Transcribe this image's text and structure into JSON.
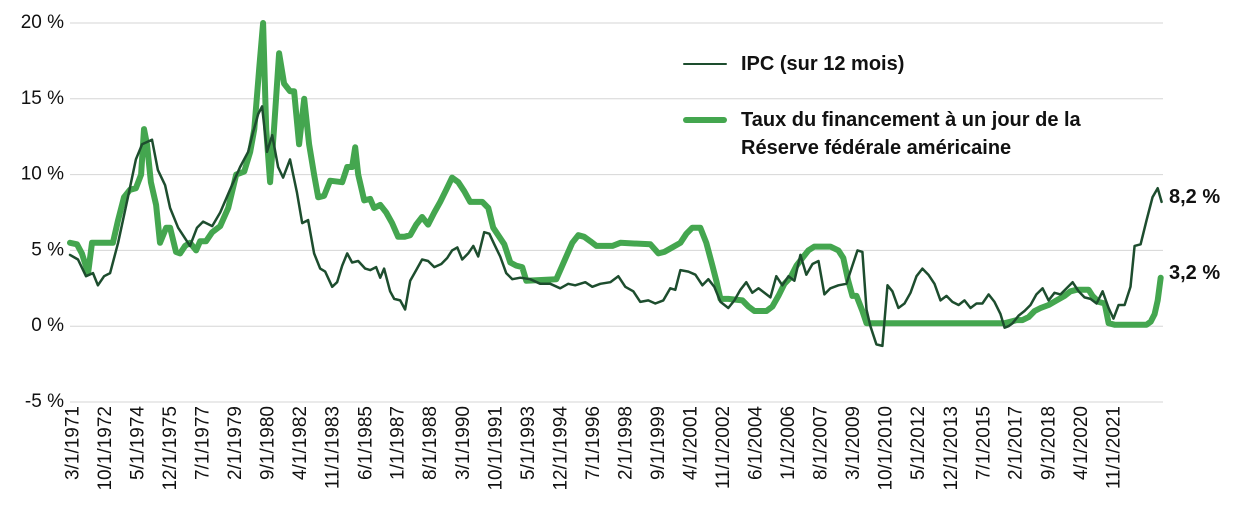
{
  "chart_data": {
    "type": "line",
    "xlim": [
      1971.0,
      2024.2
    ],
    "xticks": [
      {
        "value": 1971.17,
        "label": "3/1/1971"
      },
      {
        "value": 1972.75,
        "label": "10/1/1972"
      },
      {
        "value": 1974.33,
        "label": "5/1/1974"
      },
      {
        "value": 1975.92,
        "label": "12/1/1975"
      },
      {
        "value": 1977.5,
        "label": "7/1/1977"
      },
      {
        "value": 1979.08,
        "label": "2/1/1979"
      },
      {
        "value": 1980.67,
        "label": "9/1/1980"
      },
      {
        "value": 1982.25,
        "label": "4/1/1982"
      },
      {
        "value": 1983.83,
        "label": "11/1/1983"
      },
      {
        "value": 1985.42,
        "label": "6/1/1985"
      },
      {
        "value": 1987.0,
        "label": "1/1/1987"
      },
      {
        "value": 1988.58,
        "label": "8/1/1988"
      },
      {
        "value": 1990.17,
        "label": "3/1/1990"
      },
      {
        "value": 1991.75,
        "label": "10/1/1991"
      },
      {
        "value": 1993.33,
        "label": "5/1/1993"
      },
      {
        "value": 1994.92,
        "label": "12/1/1994"
      },
      {
        "value": 1996.5,
        "label": "7/1/1996"
      },
      {
        "value": 1998.08,
        "label": "2/1/1998"
      },
      {
        "value": 1999.67,
        "label": "9/1/1999"
      },
      {
        "value": 2001.25,
        "label": "4/1/2001"
      },
      {
        "value": 2002.83,
        "label": "11/1/2002"
      },
      {
        "value": 2004.42,
        "label": "6/1/2004"
      },
      {
        "value": 2006.0,
        "label": "1/1/2006"
      },
      {
        "value": 2007.58,
        "label": "8/1/2007"
      },
      {
        "value": 2009.17,
        "label": "3/1/2009"
      },
      {
        "value": 2010.75,
        "label": "10/1/2010"
      },
      {
        "value": 2012.33,
        "label": "5/1/2012"
      },
      {
        "value": 2013.92,
        "label": "12/1/2013"
      },
      {
        "value": 2015.5,
        "label": "7/1/2015"
      },
      {
        "value": 2017.08,
        "label": "2/1/2017"
      },
      {
        "value": 2018.67,
        "label": "9/1/2018"
      },
      {
        "value": 2020.25,
        "label": "4/1/2020"
      },
      {
        "value": 2021.83,
        "label": "11/1/2021"
      }
    ],
    "ylim": [
      -5,
      20
    ],
    "yticks": [
      {
        "value": -5,
        "label": "-5 %"
      },
      {
        "value": 0,
        "label": "0 %"
      },
      {
        "value": 5,
        "label": "5 %"
      },
      {
        "value": 10,
        "label": "10 %"
      },
      {
        "value": 15,
        "label": "15 %"
      },
      {
        "value": 20,
        "label": "20 %"
      }
    ],
    "grid": true,
    "legend": "upper right",
    "series": [
      {
        "name": "IPC (sur 12 mois)",
        "color": "#1d4d2e",
        "width": 2.5,
        "end_label": "8,2 %",
        "x": [
          1971.0,
          1971.39,
          1971.78,
          1972.12,
          1972.36,
          1972.66,
          1972.95,
          1973.34,
          1973.82,
          1974.21,
          1974.51,
          1974.99,
          1975.28,
          1975.63,
          1975.87,
          1976.26,
          1976.5,
          1976.84,
          1977.18,
          1977.48,
          1977.92,
          1978.31,
          1978.79,
          1979.28,
          1979.67,
          1979.91,
          1980.16,
          1980.35,
          1980.59,
          1980.84,
          1981.13,
          1981.37,
          1981.71,
          1982.05,
          1982.3,
          1982.59,
          1982.88,
          1983.18,
          1983.42,
          1983.76,
          1984.0,
          1984.25,
          1984.49,
          1984.73,
          1985.03,
          1985.37,
          1985.61,
          1985.9,
          1986.1,
          1986.29,
          1986.58,
          1986.78,
          1987.07,
          1987.31,
          1987.56,
          1987.85,
          1988.14,
          1988.43,
          1988.73,
          1989.07,
          1989.36,
          1989.6,
          1989.85,
          1990.09,
          1990.38,
          1990.63,
          1990.87,
          1991.16,
          1991.41,
          1991.65,
          1991.94,
          1992.23,
          1992.53,
          1992.92,
          1993.4,
          1993.89,
          1994.38,
          1994.86,
          1995.25,
          1995.59,
          1996.08,
          1996.42,
          1996.81,
          1997.3,
          1997.69,
          1998.03,
          1998.42,
          1998.76,
          1999.15,
          1999.49,
          1999.88,
          2000.22,
          2000.46,
          2000.71,
          2001.1,
          2001.44,
          2001.78,
          2002.07,
          2002.36,
          2002.66,
          2003.04,
          2003.34,
          2003.63,
          2003.92,
          2004.21,
          2004.51,
          2004.8,
          2005.09,
          2005.38,
          2005.67,
          2005.97,
          2006.26,
          2006.55,
          2006.84,
          2007.14,
          2007.43,
          2007.72,
          2008.01,
          2008.4,
          2008.79,
          2009.08,
          2009.33,
          2009.57,
          2009.77,
          2009.96,
          2010.25,
          2010.54,
          2010.79,
          2011.03,
          2011.32,
          2011.62,
          2011.91,
          2012.2,
          2012.49,
          2012.78,
          2013.08,
          2013.37,
          2013.66,
          2013.95,
          2014.25,
          2014.54,
          2014.83,
          2015.12,
          2015.41,
          2015.71,
          2016.0,
          2016.29,
          2016.49,
          2016.68,
          2016.88,
          2017.17,
          2017.46,
          2017.75,
          2018.04,
          2018.34,
          2018.63,
          2018.92,
          2019.21,
          2019.51,
          2019.8,
          2020.09,
          2020.38,
          2020.67,
          2020.97,
          2021.26,
          2021.55,
          2021.79,
          2022.04,
          2022.33,
          2022.62,
          2022.82,
          2023.11,
          2023.4,
          2023.69,
          2023.94,
          2024.13
        ],
        "values": [
          4.7,
          4.4,
          3.3,
          3.5,
          2.7,
          3.3,
          3.5,
          5.5,
          8.5,
          11,
          12,
          12.3,
          10.3,
          9.3,
          7.8,
          6.5,
          6.0,
          5.3,
          6.5,
          6.9,
          6.6,
          7.5,
          9.0,
          10.5,
          11.5,
          12.8,
          14,
          14.5,
          11.5,
          12.6,
          10.5,
          9.8,
          11.0,
          8.8,
          6.8,
          7.0,
          4.8,
          3.8,
          3.6,
          2.6,
          2.9,
          4.0,
          4.8,
          4.2,
          4.3,
          3.8,
          3.7,
          3.9,
          3.2,
          3.8,
          2.3,
          1.8,
          1.7,
          1.1,
          3.0,
          3.7,
          4.4,
          4.3,
          3.9,
          4.1,
          4.5,
          5.0,
          5.2,
          4.4,
          4.8,
          5.3,
          4.6,
          6.2,
          6.1,
          5.4,
          4.6,
          3.5,
          3.1,
          3.2,
          3.1,
          2.8,
          2.8,
          2.5,
          2.8,
          2.7,
          2.9,
          2.6,
          2.8,
          2.9,
          3.3,
          2.6,
          2.3,
          1.6,
          1.7,
          1.5,
          1.7,
          2.5,
          2.4,
          3.7,
          3.6,
          3.4,
          2.7,
          3.1,
          2.6,
          1.6,
          1.2,
          1.7,
          2.4,
          2.9,
          2.2,
          2.5,
          2.2,
          1.9,
          3.3,
          2.7,
          3.3,
          3.0,
          4.7,
          3.4,
          4.1,
          4.3,
          2.1,
          2.5,
          2.7,
          2.8,
          4.0,
          5.0,
          4.9,
          1.1,
          0.0,
          -1.2,
          -1.3,
          2.7,
          2.3,
          1.2,
          1.5,
          2.2,
          3.3,
          3.8,
          3.4,
          2.8,
          1.7,
          2.0,
          1.6,
          1.4,
          1.7,
          1.2,
          1.5,
          1.5,
          2.1,
          1.6,
          0.8,
          -0.1,
          0.0,
          0.2,
          0.7,
          1.0,
          1.4,
          2.1,
          2.5,
          1.7,
          2.2,
          2.1,
          2.5,
          2.9,
          2.3,
          1.9,
          1.8,
          1.5,
          2.3,
          1.2,
          0.5,
          1.4,
          1.4,
          2.6,
          5.3,
          5.4,
          7.0,
          8.5,
          9.1,
          8.2
        ]
      },
      {
        "name": "Taux du financement à un jour de la Réserve fédérale américaine",
        "color": "#44a64f",
        "width": 6,
        "end_label": "3,2 %",
        "x": [
          1971.0,
          1971.34,
          1971.58,
          1971.88,
          1972.07,
          1973.09,
          1973.34,
          1973.63,
          1973.92,
          1974.21,
          1974.46,
          1974.6,
          1974.75,
          1974.94,
          1975.19,
          1975.38,
          1975.68,
          1975.87,
          1976.16,
          1976.36,
          1976.6,
          1976.84,
          1977.14,
          1977.33,
          1977.62,
          1977.92,
          1978.31,
          1978.7,
          1979.09,
          1979.48,
          1979.77,
          1979.97,
          1980.21,
          1980.4,
          1980.55,
          1980.74,
          1980.93,
          1981.18,
          1981.42,
          1981.71,
          1981.91,
          1982.15,
          1982.4,
          1982.64,
          1982.88,
          1983.08,
          1983.37,
          1983.66,
          1984.25,
          1984.49,
          1984.73,
          1984.88,
          1985.03,
          1985.32,
          1985.61,
          1985.8,
          1986.1,
          1986.39,
          1986.68,
          1986.97,
          1987.27,
          1987.56,
          1987.85,
          1988.14,
          1988.43,
          1988.73,
          1989.02,
          1989.31,
          1989.6,
          1989.9,
          1990.19,
          1990.48,
          1991.07,
          1991.36,
          1991.6,
          1991.84,
          1992.14,
          1992.43,
          1992.72,
          1993.01,
          1993.21,
          1994.67,
          1995.06,
          1995.45,
          1995.74,
          1996.03,
          1996.33,
          1996.62,
          1997.4,
          1997.79,
          1999.25,
          1999.64,
          1999.93,
          2000.32,
          2000.71,
          2001.0,
          2001.29,
          2001.68,
          2001.97,
          2002.27,
          2002.46,
          2002.66,
          2003.04,
          2003.73,
          2004.02,
          2004.31,
          2004.9,
          2005.19,
          2005.48,
          2005.77,
          2006.06,
          2006.36,
          2006.65,
          2006.94,
          2007.23,
          2008.01,
          2008.4,
          2008.64,
          2008.88,
          2009.08,
          2009.28,
          2009.57,
          2009.77,
          2016.49,
          2016.78,
          2017.07,
          2017.36,
          2017.66,
          2017.95,
          2018.24,
          2018.63,
          2019.02,
          2019.41,
          2019.7,
          2019.99,
          2020.58,
          2020.77,
          2021.07,
          2021.36,
          2021.55,
          2021.84,
          2023.4,
          2023.6,
          2023.79,
          2023.94,
          2024.09
        ],
        "values": [
          5.5,
          5.4,
          4.8,
          3.5,
          5.5,
          5.5,
          7.0,
          8.5,
          9.0,
          9.1,
          10.0,
          13.0,
          12.0,
          9.5,
          8.0,
          5.5,
          6.5,
          6.5,
          4.9,
          4.8,
          5.3,
          5.5,
          5.0,
          5.6,
          5.6,
          6.2,
          6.6,
          7.8,
          10.0,
          10.2,
          11.5,
          13.0,
          17.0,
          20.0,
          13.0,
          9.5,
          13.0,
          18.0,
          16.0,
          15.5,
          15.5,
          12.0,
          15.0,
          12.0,
          10.0,
          8.5,
          8.6,
          9.6,
          9.5,
          10.5,
          10.5,
          11.8,
          10.0,
          8.3,
          8.4,
          7.8,
          8.0,
          7.5,
          6.8,
          5.9,
          5.9,
          6.0,
          6.7,
          7.2,
          6.7,
          7.5,
          8.2,
          9.0,
          9.8,
          9.5,
          8.9,
          8.2,
          8.2,
          7.8,
          6.5,
          6.0,
          5.4,
          4.2,
          4.0,
          3.9,
          3.0,
          3.1,
          4.3,
          5.5,
          6.0,
          5.9,
          5.6,
          5.3,
          5.3,
          5.5,
          5.4,
          4.8,
          4.9,
          5.2,
          5.5,
          6.1,
          6.5,
          6.5,
          5.5,
          4.0,
          3.0,
          1.8,
          1.8,
          1.7,
          1.3,
          1.0,
          1.0,
          1.3,
          2.0,
          2.8,
          3.2,
          4.0,
          4.5,
          5.0,
          5.25,
          5.25,
          5.0,
          4.5,
          3.0,
          2.0,
          2.0,
          1.0,
          0.2,
          0.2,
          0.3,
          0.4,
          0.4,
          0.6,
          1.0,
          1.2,
          1.4,
          1.7,
          2.0,
          2.3,
          2.4,
          2.4,
          2.0,
          1.6,
          1.5,
          0.2,
          0.1,
          0.1,
          0.3,
          0.8,
          1.7,
          3.2
        ]
      }
    ]
  }
}
